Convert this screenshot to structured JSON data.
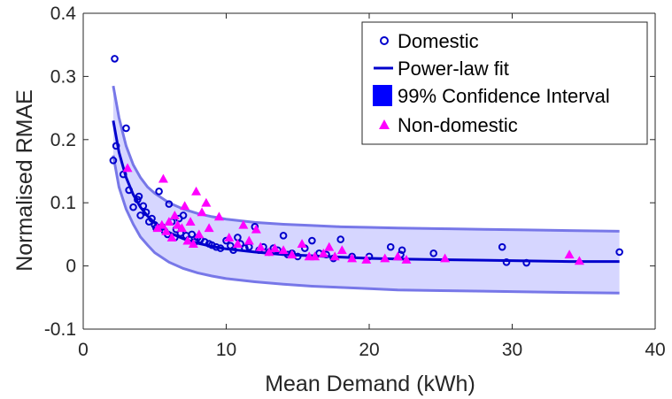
{
  "chart_data": {
    "type": "scatter",
    "xlabel": "Mean Demand (kWh)",
    "ylabel": "Normalised RMAE",
    "xlim": [
      0,
      40
    ],
    "ylim": [
      -0.1,
      0.4
    ],
    "xticks": [
      0,
      10,
      20,
      30,
      40
    ],
    "yticks": [
      -0.1,
      0,
      0.1,
      0.2,
      0.3,
      0.4
    ],
    "xtick_labels": [
      "0",
      "10",
      "20",
      "30",
      "40"
    ],
    "ytick_labels": [
      "-0.1",
      "0",
      "0.1",
      "0.2",
      "0.3",
      "0.4"
    ],
    "grid": false,
    "legend_position": "top-right",
    "legend": [
      {
        "label": "Domestic",
        "marker": "circle",
        "color": "#0000CC"
      },
      {
        "label": "Power-law fit",
        "marker": "line",
        "color": "#0000CC"
      },
      {
        "label": "99% Confidence Interval",
        "marker": "patch",
        "color": "#0000FF"
      },
      {
        "label": "Non-domestic",
        "marker": "triangle",
        "color": "#FF00FF"
      }
    ],
    "series": [
      {
        "name": "Domestic",
        "marker": "circle",
        "color": "#0000CC",
        "points": [
          [
            2.2,
            0.328
          ],
          [
            2.1,
            0.167
          ],
          [
            2.3,
            0.19
          ],
          [
            3.0,
            0.218
          ],
          [
            2.8,
            0.145
          ],
          [
            3.2,
            0.12
          ],
          [
            3.5,
            0.093
          ],
          [
            3.8,
            0.105
          ],
          [
            3.9,
            0.11
          ],
          [
            4.0,
            0.08
          ],
          [
            4.2,
            0.095
          ],
          [
            4.4,
            0.085
          ],
          [
            4.6,
            0.07
          ],
          [
            4.8,
            0.075
          ],
          [
            5.0,
            0.065
          ],
          [
            5.1,
            0.06
          ],
          [
            5.3,
            0.118
          ],
          [
            5.5,
            0.062
          ],
          [
            5.7,
            0.055
          ],
          [
            5.9,
            0.05
          ],
          [
            6.0,
            0.098
          ],
          [
            6.2,
            0.07
          ],
          [
            6.4,
            0.045
          ],
          [
            6.5,
            0.058
          ],
          [
            6.7,
            0.075
          ],
          [
            6.8,
            0.052
          ],
          [
            7.0,
            0.08
          ],
          [
            7.2,
            0.048
          ],
          [
            7.4,
            0.042
          ],
          [
            7.6,
            0.05
          ],
          [
            7.8,
            0.038
          ],
          [
            8.0,
            0.045
          ],
          [
            8.2,
            0.042
          ],
          [
            8.5,
            0.038
          ],
          [
            8.8,
            0.035
          ],
          [
            9.0,
            0.033
          ],
          [
            9.3,
            0.03
          ],
          [
            9.6,
            0.028
          ],
          [
            10.0,
            0.04
          ],
          [
            10.3,
            0.032
          ],
          [
            10.5,
            0.025
          ],
          [
            10.8,
            0.045
          ],
          [
            11.0,
            0.035
          ],
          [
            11.3,
            0.028
          ],
          [
            11.6,
            0.03
          ],
          [
            12.0,
            0.062
          ],
          [
            12.3,
            0.025
          ],
          [
            12.6,
            0.03
          ],
          [
            13.0,
            0.022
          ],
          [
            13.3,
            0.028
          ],
          [
            13.6,
            0.025
          ],
          [
            14.0,
            0.048
          ],
          [
            14.3,
            0.018
          ],
          [
            14.6,
            0.02
          ],
          [
            15.0,
            0.015
          ],
          [
            15.5,
            0.028
          ],
          [
            16.0,
            0.04
          ],
          [
            16.5,
            0.02
          ],
          [
            17.0,
            0.018
          ],
          [
            17.5,
            0.012
          ],
          [
            18.0,
            0.042
          ],
          [
            18.8,
            0.015
          ],
          [
            20.0,
            0.015
          ],
          [
            21.5,
            0.03
          ],
          [
            22.3,
            0.025
          ],
          [
            22.2,
            0.018
          ],
          [
            24.5,
            0.02
          ],
          [
            29.3,
            0.03
          ],
          [
            29.6,
            0.006
          ],
          [
            31.0,
            0.005
          ],
          [
            37.5,
            0.022
          ]
        ]
      },
      {
        "name": "Non-domestic",
        "marker": "triangle",
        "color": "#FF00FF",
        "points": [
          [
            3.1,
            0.155
          ],
          [
            5.2,
            0.06
          ],
          [
            5.5,
            0.065
          ],
          [
            5.6,
            0.138
          ],
          [
            5.8,
            0.055
          ],
          [
            6.0,
            0.07
          ],
          [
            6.2,
            0.045
          ],
          [
            6.4,
            0.08
          ],
          [
            6.6,
            0.065
          ],
          [
            6.9,
            0.06
          ],
          [
            7.1,
            0.095
          ],
          [
            7.3,
            0.04
          ],
          [
            7.5,
            0.07
          ],
          [
            7.7,
            0.035
          ],
          [
            7.9,
            0.118
          ],
          [
            8.1,
            0.05
          ],
          [
            8.3,
            0.085
          ],
          [
            8.6,
            0.1
          ],
          [
            8.8,
            0.06
          ],
          [
            9.5,
            0.078
          ],
          [
            10.2,
            0.045
          ],
          [
            10.8,
            0.035
          ],
          [
            11.2,
            0.065
          ],
          [
            11.6,
            0.04
          ],
          [
            12.1,
            0.058
          ],
          [
            12.4,
            0.03
          ],
          [
            13.0,
            0.022
          ],
          [
            13.4,
            0.028
          ],
          [
            14.0,
            0.025
          ],
          [
            14.6,
            0.018
          ],
          [
            15.3,
            0.035
          ],
          [
            15.8,
            0.015
          ],
          [
            16.2,
            0.015
          ],
          [
            16.8,
            0.02
          ],
          [
            17.2,
            0.03
          ],
          [
            17.6,
            0.015
          ],
          [
            18.1,
            0.025
          ],
          [
            18.8,
            0.012
          ],
          [
            19.8,
            0.01
          ],
          [
            21.1,
            0.012
          ],
          [
            22.0,
            0.015
          ],
          [
            22.6,
            0.01
          ],
          [
            25.3,
            0.012
          ],
          [
            34.0,
            0.018
          ],
          [
            34.7,
            0.008
          ]
        ]
      },
      {
        "name": "Power-law fit",
        "type": "line",
        "color": "#0000CC",
        "x": [
          2.1,
          2.5,
          3,
          3.5,
          4,
          4.5,
          5,
          6,
          7,
          8,
          9,
          10,
          12,
          14,
          16,
          18,
          20,
          22,
          25,
          28,
          31,
          34,
          37.5
        ],
        "y": [
          0.23,
          0.18,
          0.14,
          0.113,
          0.093,
          0.079,
          0.068,
          0.053,
          0.043,
          0.036,
          0.031,
          0.027,
          0.022,
          0.018,
          0.016,
          0.014,
          0.012,
          0.011,
          0.01,
          0.009,
          0.008,
          0.007,
          0.007
        ]
      },
      {
        "name": "99% Confidence Interval",
        "type": "area",
        "color": "#0000FF",
        "x": [
          2.1,
          2.5,
          3,
          3.5,
          4,
          4.5,
          5,
          6,
          7,
          8,
          9,
          10,
          12,
          14,
          16,
          18,
          20,
          22,
          25,
          28,
          31,
          34,
          37.5
        ],
        "upper": [
          0.285,
          0.235,
          0.19,
          0.16,
          0.14,
          0.125,
          0.115,
          0.1,
          0.09,
          0.083,
          0.078,
          0.074,
          0.069,
          0.066,
          0.064,
          0.062,
          0.061,
          0.06,
          0.059,
          0.058,
          0.057,
          0.056,
          0.055
        ],
        "lower": [
          0.175,
          0.125,
          0.09,
          0.066,
          0.046,
          0.033,
          0.021,
          0.006,
          -0.004,
          -0.011,
          -0.016,
          -0.02,
          -0.025,
          -0.029,
          -0.032,
          -0.034,
          -0.036,
          -0.038,
          -0.039,
          -0.04,
          -0.041,
          -0.042,
          -0.043
        ]
      }
    ]
  }
}
